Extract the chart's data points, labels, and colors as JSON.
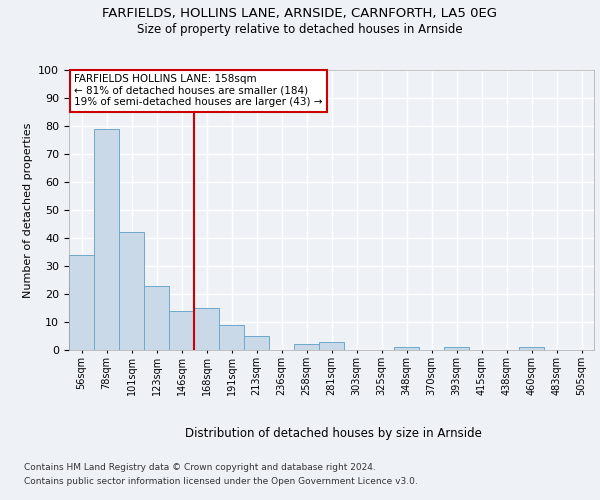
{
  "title1": "FARFIELDS, HOLLINS LANE, ARNSIDE, CARNFORTH, LA5 0EG",
  "title2": "Size of property relative to detached houses in Arnside",
  "xlabel": "Distribution of detached houses by size in Arnside",
  "ylabel": "Number of detached properties",
  "categories": [
    "56sqm",
    "78sqm",
    "101sqm",
    "123sqm",
    "146sqm",
    "168sqm",
    "191sqm",
    "213sqm",
    "236sqm",
    "258sqm",
    "281sqm",
    "303sqm",
    "325sqm",
    "348sqm",
    "370sqm",
    "393sqm",
    "415sqm",
    "438sqm",
    "460sqm",
    "483sqm",
    "505sqm"
  ],
  "values": [
    34,
    79,
    42,
    23,
    14,
    15,
    9,
    5,
    0,
    2,
    3,
    0,
    0,
    1,
    0,
    1,
    0,
    0,
    1,
    0,
    0
  ],
  "bar_color": "#c9d9e8",
  "bar_edge_color": "#6ea8cc",
  "vline_color": "#cc0000",
  "annotation_text": "FARFIELDS HOLLINS LANE: 158sqm\n← 81% of detached houses are smaller (184)\n19% of semi-detached houses are larger (43) →",
  "annotation_box_color": "#ffffff",
  "annotation_box_edge": "#cc0000",
  "footer1": "Contains HM Land Registry data © Crown copyright and database right 2024.",
  "footer2": "Contains public sector information licensed under the Open Government Licence v3.0.",
  "ylim": [
    0,
    100
  ],
  "background_color": "#eef2f7",
  "plot_bg_color": "#eef2f7",
  "grid_color": "#ffffff",
  "vline_x_index": 4.5
}
